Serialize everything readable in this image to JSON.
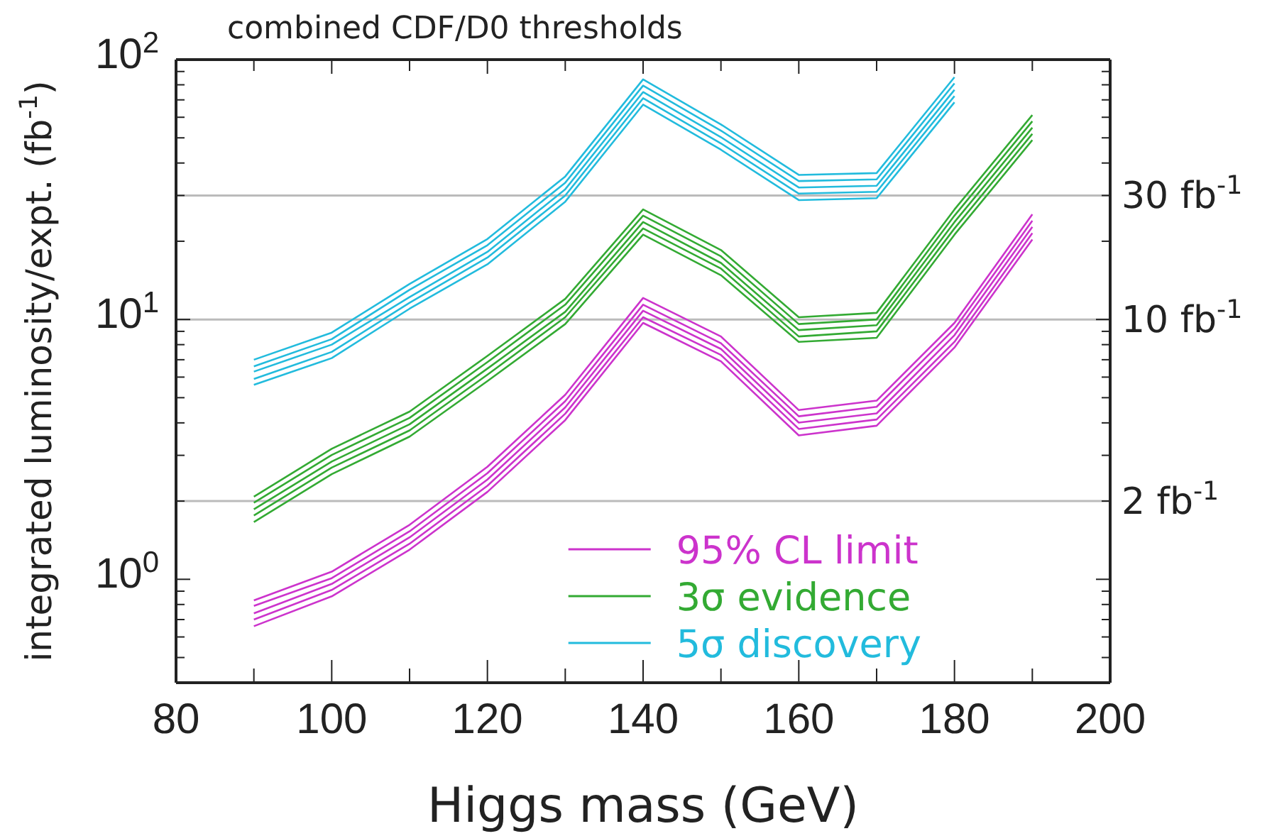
{
  "chart_data": {
    "type": "line",
    "title": "combined CDF/D0 thresholds",
    "xlabel": "Higgs mass (GeV)",
    "ylabel": "integrated luminosity/expt. (fb$^{-1}$)",
    "x": [
      90,
      100,
      110,
      120,
      130,
      140,
      150,
      160,
      170,
      180,
      190
    ],
    "series": [
      {
        "name": "95% CL limit",
        "color": "#cc33cc",
        "values": [
          0.83,
          1.07,
          1.62,
          2.71,
          5.13,
          12.1,
          8.6,
          4.48,
          4.87,
          9.7,
          25.4
        ]
      },
      {
        "color": "#cc33cc",
        "values": [
          0.79,
          1.01,
          1.53,
          2.56,
          4.85,
          11.4,
          8.1,
          4.24,
          4.61,
          9.2,
          24.0
        ]
      },
      {
        "color": "#cc33cc",
        "values": [
          0.74,
          0.96,
          1.45,
          2.42,
          4.59,
          10.8,
          7.7,
          4.01,
          4.35,
          8.7,
          22.7
        ]
      },
      {
        "color": "#cc33cc",
        "values": [
          0.7,
          0.91,
          1.37,
          2.29,
          4.34,
          10.2,
          7.3,
          3.79,
          4.12,
          8.2,
          21.5
        ]
      },
      {
        "color": "#cc33cc",
        "values": [
          0.66,
          0.86,
          1.3,
          2.17,
          4.1,
          9.7,
          6.9,
          3.58,
          3.9,
          7.8,
          20.3
        ]
      },
      {
        "name": "3σ evidence",
        "color": "#33aa33",
        "values": [
          2.08,
          3.18,
          4.42,
          7.24,
          12.0,
          26.5,
          18.5,
          10.2,
          10.6,
          26.5,
          61.2
        ]
      },
      {
        "color": "#33aa33",
        "values": [
          1.97,
          3.01,
          4.18,
          6.85,
          11.4,
          25.1,
          17.5,
          9.6,
          10.0,
          25.1,
          57.9
        ]
      },
      {
        "color": "#33aa33",
        "values": [
          1.86,
          2.84,
          3.95,
          6.47,
          10.7,
          23.7,
          16.5,
          9.1,
          9.5,
          23.7,
          54.7
        ]
      },
      {
        "color": "#33aa33",
        "values": [
          1.76,
          2.69,
          3.74,
          6.13,
          10.2,
          22.4,
          15.7,
          8.6,
          9.0,
          22.4,
          51.8
        ]
      },
      {
        "color": "#33aa33",
        "values": [
          1.66,
          2.54,
          3.54,
          5.79,
          9.6,
          21.2,
          14.8,
          8.2,
          8.5,
          21.2,
          49.0
        ]
      },
      {
        "name": "5σ discovery",
        "color": "#22bbdd",
        "values": [
          7.0,
          8.9,
          13.7,
          20.4,
          35.5,
          83.9,
          56.3,
          36.0,
          36.6,
          85.6,
          null
        ]
      },
      {
        "color": "#22bbdd",
        "values": [
          6.6,
          8.4,
          13.0,
          19.3,
          33.6,
          79.4,
          53.3,
          34.1,
          34.6,
          81.0,
          null
        ]
      },
      {
        "color": "#22bbdd",
        "values": [
          6.3,
          8.0,
          12.2,
          18.2,
          31.7,
          75.0,
          50.3,
          32.2,
          32.7,
          76.5,
          null
        ]
      },
      {
        "color": "#22bbdd",
        "values": [
          5.9,
          7.5,
          11.6,
          17.3,
          30.0,
          71.0,
          47.6,
          30.5,
          31.0,
          72.4,
          null
        ]
      },
      {
        "color": "#22bbdd",
        "values": [
          5.6,
          7.1,
          11.0,
          16.3,
          28.4,
          67.1,
          45.0,
          28.8,
          29.3,
          68.5,
          null
        ]
      }
    ],
    "xlim": [
      80,
      200
    ],
    "xticks": [
      80,
      {
        "value": 90,
        "label": null
      },
      100,
      {
        "value": 110,
        "label": null
      },
      120,
      {
        "value": 130,
        "label": null
      },
      140,
      {
        "value": 150,
        "label": null
      },
      160,
      {
        "value": 170,
        "label": null
      },
      180,
      {
        "value": 190,
        "label": null
      },
      200
    ],
    "ylim": [
      0.4,
      100
    ],
    "log": true,
    "yticks": [
      {
        "value": 0.5,
        "label": null
      },
      {
        "value": 0.6,
        "label": null
      },
      {
        "value": 0.7,
        "label": null
      },
      {
        "value": 0.8,
        "label": null
      },
      {
        "value": 0.9,
        "label": null
      },
      {
        "value": 1,
        "label": "10$^{0}$"
      },
      {
        "value": 2,
        "label": null
      },
      {
        "value": 3,
        "label": null
      },
      {
        "value": 4,
        "label": null
      },
      {
        "value": 5,
        "label": null
      },
      {
        "value": 6,
        "label": null
      },
      {
        "value": 7,
        "label": null
      },
      {
        "value": 8,
        "label": null
      },
      {
        "value": 9,
        "label": null
      },
      {
        "value": 10,
        "label": "10$^{1}$"
      },
      {
        "value": 20,
        "label": null
      },
      {
        "value": 30,
        "label": null
      },
      {
        "value": 40,
        "label": null
      },
      {
        "value": 50,
        "label": null
      },
      {
        "value": 60,
        "label": null
      },
      {
        "value": 70,
        "label": null
      },
      {
        "value": 80,
        "label": null
      },
      {
        "value": 90,
        "label": null
      },
      {
        "value": 100,
        "label": "10$^{2}$"
      }
    ],
    "ref_lines": [
      {
        "axis": "y",
        "value": 30,
        "label": "30 fb$^{-1}$",
        "color": "#bbbbbb"
      },
      {
        "axis": "y",
        "value": 10,
        "label": "10 fb$^{-1}$",
        "color": "#bbbbbb"
      },
      {
        "axis": "y",
        "value": 2,
        "label": "2 fb$^{-1}$",
        "color": "#bbbbbb"
      }
    ],
    "legend": "bottom",
    "marker": "none",
    "line_style": "solid",
    "grid": false
  }
}
